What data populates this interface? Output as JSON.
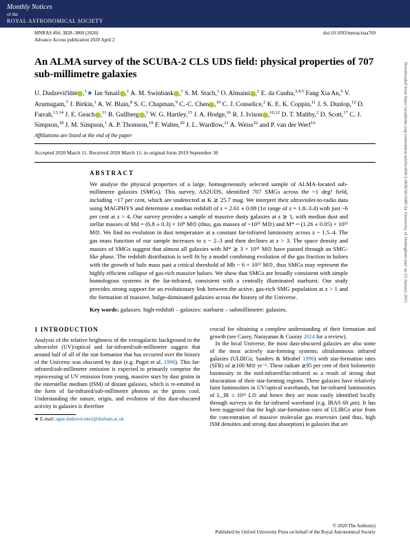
{
  "header": {
    "line1": "Monthly Notices",
    "line2": "of the",
    "line3": "ROYAL ASTRONOMICAL SOCIETY"
  },
  "meta": {
    "left1": "MNRAS 494, 3828–3860 (2020)",
    "left2": "Advance Access publication 2020 April 2",
    "right": "doi:10.1093/mnras/staa769"
  },
  "title": "An ALMA survey of the SCUBA-2 CLS UDS field: physical properties of 707 sub-millimetre galaxies",
  "affilNote": "Affiliations are listed at the end of the paper",
  "dates": "Accepted 2020 March 11. Received 2020 March 11; in original form 2019 September 30",
  "abstractHeading": "ABSTRACT",
  "abstractText": "We analyse the physical properties of a large, homogeneously selected sample of ALMA-located sub-millimetre galaxies (SMGs). This survey, AS2UDS, identified 707 SMGs across the ~1 deg² field, including ~17 per cent, which are undetected at K ≳ 25.7 mag. We interpret their ultraviolet-to-radio data using MAGPHYS and determine a median redshift of z = 2.61 ± 0.08 (1σ range of z = 1.8–3.4) with just ~6 per cent at z > 4. Our survey provides a sample of massive dusty galaxies at z ≳ 1, with median dust and stellar masses of Md = (6.8 ± 0.3) × 10⁸ M⊙ (thus, gas masses of ~10¹¹ M⊙) and M* = (1.26 ± 0.05) × 10¹¹ M⊙. We find no evolution in dust temperature at a constant far-infrared luminosity across z ~ 1.5–4. The gas mass function of our sample increases to z ~ 2–3 and then declines at z > 3. The space density and masses of SMGs suggest that almost all galaxies with M* ≳ 3 × 10¹¹ M⊙ have passed through an SMG-like phase. The redshift distribution is well fit by a model combining evolution of the gas fraction in haloes with the growth of halo mass past a critical threshold of Mh ~ 6 × 10¹² M⊙, thus SMGs may represent the highly efficient collapse of gas-rich massive haloes. We show that SMGs are broadly consistent with simple homologous systems in the far-infrared, consistent with a centrally illuminated starburst. Our study provides strong support for an evolutionary link between the active, gas-rich SMG population at z > 1 and the formation of massive, bulge-dominated galaxies across the history of the Universe.",
  "keywordsLabel": "Key words:",
  "keywordsText": "galaxies: high-redshift – galaxies: starburst – submillimetre: galaxies.",
  "introHeading": "1 INTRODUCTION",
  "col1p1": "Analysis of the relative brightness of the extragalactic background in the ultraviolet (UV)/optical and far-infrared/sub-millimetre suggest that around half of all of the star formation that has occurred over the history of the Universe was obscured by dust (e.g. Puget et al. ",
  "cite1996a": "1996",
  "col1p2": "). This far-infrared/sub-millimetre emission is expected to primarily comprise the reprocessing of UV emission from young, massive stars by dust grains in the interstellar medium (ISM) of distant galaxies, which is re-emitted in the form of far-infrared/sub-millimetre photons as the grains cool. Understanding the nature, origin, and evolution of this dust-obscured activity in galaxies is therefore",
  "col2p1": "crucial for obtaining a complete understanding of their formation and growth (see Casey, Narayanan & Cooray ",
  "cite2014": "2014",
  "col2p1b": " for a review).",
  "col2p2a": "In the local Universe, the most dust-obscured galaxies are also some of the most actively star-forming systems: ultraluminous infrared galaxies (ULIRGs; Sanders & Mirabel ",
  "cite1996b": "1996",
  "col2p2b": ") with star-formation rates (SFR) of ≳100 M⊙ yr⁻¹. These radiate ≳95 per cent of their bolometric luminosity in the mid-infrared/far-infrared as a result of strong dust obscuration of their star-forming regions. These galaxies have relatively faint luminosities in UV/optical wavebands, but far-infrared luminosities of L_IR ≥ 10¹² L⊙ and hence they are most easily identified locally through surveys in the far-infrared waveband (e.g. IRAS 60 μm). It has been suggested that the high star-formation rates of ULIRGs arise from the concentration of massive molecular gas reservoirs (and thus, high ISM densities and strong dust absorption) in galaxies that are",
  "footnoteLabel": "★ E-mail:",
  "footnoteEmail": "ugne.dudzeviciute2@durham.ac.uk",
  "footer1": "© 2020 The Author(s)",
  "footer2": "Published by Oxford University Press on behalf of the Royal Astronomical Society",
  "sideText": "Downloaded from https://academic.oup.com/mnras/article/494/3/3828/5815085 by University of Nottingham user on 22 January 2021"
}
